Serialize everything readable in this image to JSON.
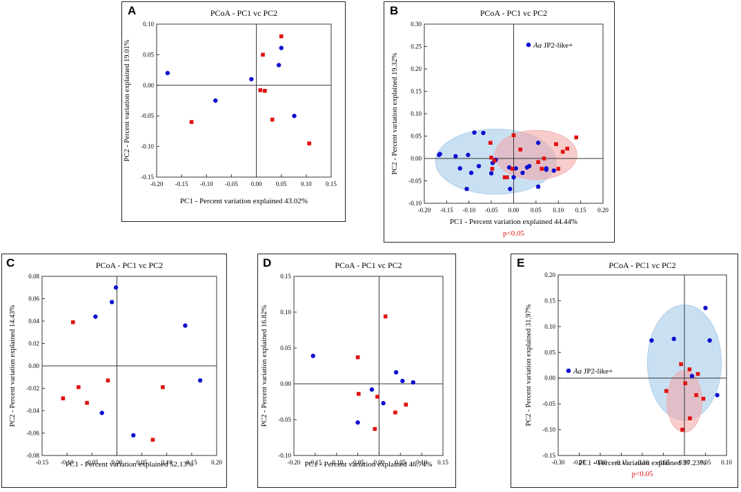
{
  "charts": [
    {
      "panel": "A",
      "title": "PCoA - PC1 vc PC2",
      "xlabel": "PC1 - Percent variation explained 43.02%",
      "ylabel": "PC2 - Percent variation explained 19.01%",
      "pvalue": "",
      "legend": null
    },
    {
      "panel": "B",
      "title": "PCoA - PC1 vc PC2",
      "xlabel": "PC1 - Percent variation explained 44.44%",
      "ylabel": "PC2 - Percent variation explained 19.32%",
      "pvalue": "p<0.05",
      "legend": {
        "italic": "Aa",
        "text": " JP2-like+"
      }
    },
    {
      "panel": "C",
      "title": "PCoA - PC1 vc PC2",
      "xlabel": "PC1 - Percent variation explained 52.13%",
      "ylabel": "PC2 - Percent variation explained 14.43%",
      "pvalue": "",
      "legend": null
    },
    {
      "panel": "D",
      "title": "PCoA - PC1 vc PC2",
      "xlabel": "PC1 - Percent variation explained 46.74%",
      "ylabel": "PC2 - Percent variation explained 16.82%",
      "pvalue": "",
      "legend": null
    },
    {
      "panel": "E",
      "title": "PCoA - PC1 vc PC2",
      "xlabel": "PC1 - Percent variation explained 37.23%",
      "ylabel": "PC2 - Percent variation explained 31.97%",
      "pvalue": "p<0.05",
      "legend": {
        "italic": "Aa",
        "text": " JP2-like+"
      }
    }
  ],
  "colors": {
    "blue": "#1010d0",
    "red": "#e01010",
    "blue_ellipse": "#9cc7ea",
    "red_ellipse": "#f4a3a3",
    "pvalue": "#e01010"
  },
  "chart_data": [
    {
      "type": "scatter",
      "panel": "A",
      "xlim": [
        -0.2,
        0.15
      ],
      "ylim": [
        -0.15,
        0.1
      ],
      "xticks": [
        "-0.20",
        "-0.15",
        "-0.10",
        "-0.05",
        "0.00",
        "0.05",
        "0.10",
        "0.15"
      ],
      "yticks": [
        "0.10",
        "0.05",
        "0.00",
        "-0.05",
        "-0.10",
        "-0.15"
      ],
      "xtick_values": [
        -0.2,
        -0.15,
        -0.1,
        -0.05,
        0,
        0.05,
        0.1,
        0.15
      ],
      "ytick_values": [
        0.1,
        0.05,
        0,
        -0.05,
        -0.1,
        -0.15
      ],
      "series": [
        {
          "name": "blue",
          "marker": "circle",
          "points": [
            [
              -0.178,
              0.02
            ],
            [
              -0.082,
              -0.025
            ],
            [
              -0.01,
              0.01
            ],
            [
              0.045,
              0.033
            ],
            [
              0.05,
              0.061
            ],
            [
              0.076,
              -0.05
            ]
          ]
        },
        {
          "name": "red",
          "marker": "square",
          "points": [
            [
              -0.13,
              -0.06
            ],
            [
              0.008,
              -0.008
            ],
            [
              0.013,
              0.05
            ],
            [
              0.017,
              -0.009
            ],
            [
              0.032,
              -0.056
            ],
            [
              0.05,
              0.08
            ],
            [
              0.106,
              -0.095
            ]
          ]
        }
      ]
    },
    {
      "type": "scatter",
      "panel": "B",
      "xlim": [
        -0.2,
        0.2
      ],
      "ylim": [
        -0.1,
        0.3
      ],
      "xticks": [
        "-0.20",
        "-0.15",
        "-0.10",
        "-0.05",
        "0.00",
        "0.05",
        "0.10",
        "0.15",
        "0.20"
      ],
      "yticks": [
        "0.30",
        "0.25",
        "0.20",
        "0.15",
        "0.10",
        "0.05",
        "0.00",
        "-0.05",
        "-0.10"
      ],
      "xtick_values": [
        -0.2,
        -0.15,
        -0.1,
        -0.05,
        0,
        0.05,
        0.1,
        0.15,
        0.2
      ],
      "ytick_values": [
        0.3,
        0.25,
        0.2,
        0.15,
        0.1,
        0.05,
        0,
        -0.05,
        -0.1
      ],
      "series": [
        {
          "name": "Aa JP2-like+",
          "marker": "circle",
          "points": [
            [
              -0.167,
              0.008
            ],
            [
              -0.165,
              0.01
            ],
            [
              -0.13,
              0.005
            ],
            [
              -0.12,
              -0.022
            ],
            [
              -0.105,
              -0.068
            ],
            [
              -0.102,
              0.008
            ],
            [
              -0.095,
              -0.032
            ],
            [
              -0.088,
              0.058
            ],
            [
              -0.078,
              -0.017
            ],
            [
              -0.068,
              0.057
            ],
            [
              -0.05,
              -0.033
            ],
            [
              -0.047,
              -0.01
            ],
            [
              -0.04,
              -0.003
            ],
            [
              -0.01,
              -0.02
            ],
            [
              -0.008,
              -0.068
            ],
            [
              0.0,
              -0.042
            ],
            [
              0.005,
              -0.022
            ],
            [
              0.02,
              -0.032
            ],
            [
              0.03,
              -0.02
            ],
            [
              0.035,
              -0.017
            ],
            [
              0.055,
              0.035
            ],
            [
              0.055,
              -0.063
            ],
            [
              0.073,
              -0.025
            ],
            [
              0.073,
              -0.022
            ],
            [
              0.09,
              -0.027
            ]
          ]
        },
        {
          "name": "other",
          "marker": "square",
          "points": [
            [
              -0.052,
              0.035
            ],
            [
              -0.05,
              0.002
            ],
            [
              -0.048,
              -0.023
            ],
            [
              -0.043,
              -0.005
            ],
            [
              -0.02,
              -0.042
            ],
            [
              -0.015,
              -0.042
            ],
            [
              -0.003,
              -0.023
            ],
            [
              -0.0,
              0.052
            ],
            [
              0.015,
              0.02
            ],
            [
              0.055,
              -0.008
            ],
            [
              0.063,
              -0.023
            ],
            [
              0.068,
              0.0
            ],
            [
              0.095,
              0.032
            ],
            [
              0.1,
              -0.023
            ],
            [
              0.11,
              0.015
            ],
            [
              0.12,
              0.022
            ],
            [
              0.14,
              0.047
            ]
          ]
        }
      ],
      "ellipses": [
        {
          "color": "blue",
          "cx": -0.04,
          "cy": -0.007,
          "rx": 0.135,
          "ry": 0.073
        },
        {
          "color": "red",
          "cx": 0.05,
          "cy": 0.008,
          "rx": 0.092,
          "ry": 0.055
        }
      ]
    },
    {
      "type": "scatter",
      "panel": "C",
      "xlim": [
        -0.15,
        0.2
      ],
      "ylim": [
        -0.08,
        0.08
      ],
      "xticks": [
        "-0.15",
        "-0.10",
        "-0.05",
        "0.00",
        "0.05",
        "0.10",
        "0.15",
        "0.20"
      ],
      "yticks": [
        "0.08",
        "0.06",
        "0.04",
        "0.02",
        "0.00",
        "-0.02",
        "-0.04",
        "-0.06",
        "-0.08"
      ],
      "xtick_values": [
        -0.15,
        -0.1,
        -0.05,
        0,
        0.05,
        0.1,
        0.15,
        0.2
      ],
      "ytick_values": [
        0.08,
        0.06,
        0.04,
        0.02,
        0,
        -0.02,
        -0.04,
        -0.06,
        -0.08
      ],
      "series": [
        {
          "name": "blue",
          "marker": "circle",
          "points": [
            [
              -0.002,
              0.07
            ],
            [
              -0.01,
              0.057
            ],
            [
              -0.043,
              0.044
            ],
            [
              -0.03,
              -0.042
            ],
            [
              0.033,
              -0.062
            ],
            [
              0.137,
              0.036
            ],
            [
              0.167,
              -0.013
            ]
          ]
        },
        {
          "name": "red",
          "marker": "square",
          "points": [
            [
              -0.088,
              0.039
            ],
            [
              -0.108,
              -0.029
            ],
            [
              -0.077,
              -0.019
            ],
            [
              -0.06,
              -0.033
            ],
            [
              -0.018,
              -0.013
            ],
            [
              0.072,
              -0.066
            ],
            [
              0.092,
              -0.019
            ]
          ]
        }
      ]
    },
    {
      "type": "scatter",
      "panel": "D",
      "xlim": [
        -0.2,
        0.15
      ],
      "ylim": [
        -0.1,
        0.15
      ],
      "xticks": [
        "-0.20",
        "-0.15",
        "-0.10",
        "-0.05",
        "0.00",
        "0.05",
        "0.10",
        "0.15"
      ],
      "yticks": [
        "0.15",
        "0.10",
        "0.05",
        "0.00",
        "-0.05",
        "-0.10"
      ],
      "xtick_values": [
        -0.2,
        -0.15,
        -0.1,
        -0.05,
        0,
        0.05,
        0.1,
        0.15
      ],
      "ytick_values": [
        0.15,
        0.1,
        0.05,
        0,
        -0.05,
        -0.1
      ],
      "series": [
        {
          "name": "blue",
          "marker": "circle",
          "points": [
            [
              -0.155,
              0.039
            ],
            [
              -0.05,
              -0.054
            ],
            [
              -0.017,
              -0.008
            ],
            [
              0.01,
              -0.027
            ],
            [
              0.04,
              0.016
            ],
            [
              0.055,
              0.004
            ],
            [
              0.08,
              0.002
            ]
          ]
        },
        {
          "name": "red",
          "marker": "square",
          "points": [
            [
              -0.05,
              0.037
            ],
            [
              -0.048,
              -0.014
            ],
            [
              -0.01,
              -0.063
            ],
            [
              -0.004,
              -0.018
            ],
            [
              0.015,
              0.094
            ],
            [
              0.038,
              -0.04
            ],
            [
              0.063,
              -0.029
            ]
          ]
        }
      ]
    },
    {
      "type": "scatter",
      "panel": "E",
      "xlim": [
        -0.3,
        0.1
      ],
      "ylim": [
        -0.15,
        0.2
      ],
      "xticks": [
        "-0.30",
        "-0.25",
        "-0.20",
        "-0.15",
        "-0.10",
        "-0.05",
        "0.00",
        "0.05",
        "0.10"
      ],
      "yticks": [
        "0.20",
        "0.15",
        "0.10",
        "0.05",
        "0.00",
        "-0.05",
        "-0.10",
        "-0.15"
      ],
      "xtick_values": [
        -0.3,
        -0.25,
        -0.2,
        -0.15,
        -0.1,
        -0.05,
        0,
        0.05,
        0.1
      ],
      "ytick_values": [
        0.2,
        0.15,
        0.1,
        0.05,
        0,
        -0.05,
        -0.1,
        -0.15
      ],
      "series": [
        {
          "name": "Aa JP2-like+",
          "marker": "circle",
          "points": [
            [
              -0.078,
              0.073
            ],
            [
              -0.025,
              0.076
            ],
            [
              0.018,
              0.004
            ],
            [
              0.05,
              0.136
            ],
            [
              0.06,
              0.073
            ],
            [
              0.078,
              -0.033
            ]
          ]
        },
        {
          "name": "other",
          "marker": "square",
          "points": [
            [
              -0.043,
              -0.025
            ],
            [
              -0.008,
              0.027
            ],
            [
              -0.005,
              -0.1
            ],
            [
              0.002,
              -0.01
            ],
            [
              0.012,
              0.017
            ],
            [
              0.013,
              -0.078
            ],
            [
              0.028,
              -0.033
            ],
            [
              0.032,
              0.008
            ],
            [
              0.045,
              -0.04
            ]
          ]
        }
      ],
      "ellipses": [
        {
          "color": "blue",
          "cx": 0.0,
          "cy": 0.03,
          "rx": 0.088,
          "ry": 0.112
        },
        {
          "color": "red",
          "cx": 0.0,
          "cy": -0.045,
          "rx": 0.042,
          "ry": 0.06
        }
      ]
    }
  ]
}
